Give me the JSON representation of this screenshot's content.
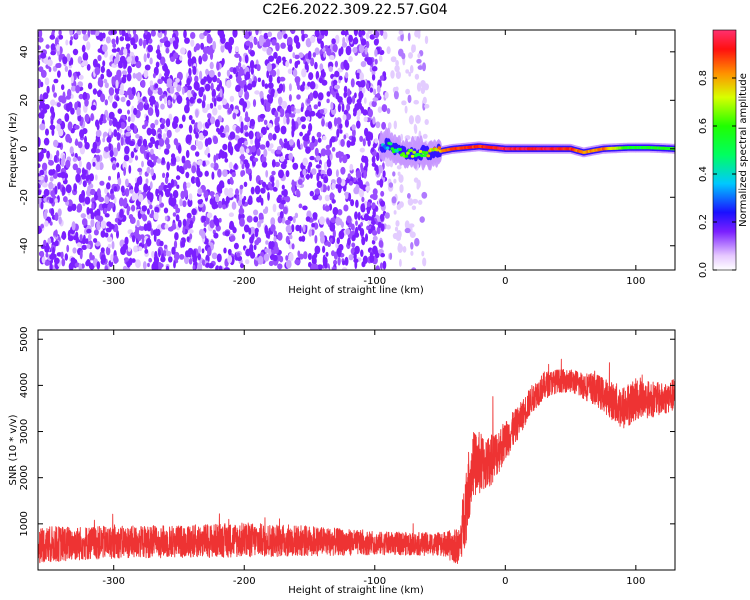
{
  "title": "C2E6.2022.309.22.57.G04",
  "chart_data": [
    {
      "type": "heatmap",
      "xlabel": "Height of straight line (km)",
      "ylabel": "Frequency (Hz)",
      "xlim": [
        -358,
        130
      ],
      "ylim": [
        -50,
        49
      ],
      "xticks": [
        "-300",
        "-200",
        "-100",
        "0",
        "100"
      ],
      "xtick_values": [
        -300,
        -200,
        -100,
        0,
        100
      ],
      "yticks": [
        "-40",
        "-20",
        "0",
        "20",
        "40"
      ],
      "ytick_values": [
        -40,
        -20,
        0,
        20,
        40
      ],
      "colorbar": {
        "label": "Normalized spectral amplitude",
        "range": [
          0,
          1
        ],
        "ticks": [
          "0.0",
          "0.2",
          "0.4",
          "0.6",
          "0.8"
        ],
        "tick_values": [
          0.0,
          0.2,
          0.4,
          0.6,
          0.8
        ]
      },
      "regions": [
        {
          "kind": "noise",
          "x_range": [
            -358,
            -92
          ],
          "y_range": [
            -50,
            49
          ],
          "amplitude": 0.05
        },
        {
          "kind": "sparse-noise",
          "x_range": [
            -92,
            -60
          ],
          "y_range": [
            -50,
            49
          ],
          "amplitude": 0.02
        }
      ],
      "signal_track": [
        {
          "x": -95,
          "y": 0.5,
          "amplitude": 0.25
        },
        {
          "x": -90,
          "y": 1.5,
          "amplitude": 0.45
        },
        {
          "x": -80,
          "y": -1.5,
          "amplitude": 0.55
        },
        {
          "x": -70,
          "y": -2,
          "amplitude": 0.6
        },
        {
          "x": -55,
          "y": -1.5,
          "amplitude": 0.7
        },
        {
          "x": -40,
          "y": 0,
          "amplitude": 0.9
        },
        {
          "x": -20,
          "y": 1,
          "amplitude": 0.9
        },
        {
          "x": 0,
          "y": 0,
          "amplitude": 0.95
        },
        {
          "x": 30,
          "y": 0,
          "amplitude": 0.95
        },
        {
          "x": 50,
          "y": 0,
          "amplitude": 0.9
        },
        {
          "x": 60,
          "y": -1.5,
          "amplitude": 0.8
        },
        {
          "x": 75,
          "y": 0,
          "amplitude": 0.85
        },
        {
          "x": 95,
          "y": 0.5,
          "amplitude": 0.55
        },
        {
          "x": 110,
          "y": 0.5,
          "amplitude": 0.55
        },
        {
          "x": 130,
          "y": 0,
          "amplitude": 0.6
        }
      ]
    },
    {
      "type": "line",
      "xlabel": "Height of straight line (km)",
      "ylabel": "SNR (10 * v/v)",
      "xlim": [
        -358,
        130
      ],
      "ylim": [
        0,
        5200
      ],
      "xticks": [
        "-300",
        "-200",
        "-100",
        "0",
        "100"
      ],
      "xtick_values": [
        -300,
        -200,
        -100,
        0,
        100
      ],
      "yticks": [
        "1000",
        "2000",
        "3000",
        "4000",
        "5000"
      ],
      "ytick_values": [
        1000,
        2000,
        3000,
        4000,
        5000
      ],
      "line_color": "#ee3333",
      "series": [
        {
          "x": [
            -358,
            -300,
            -250,
            -200,
            -150,
            -100,
            -50,
            -35,
            -30,
            -25,
            -20,
            -15,
            -10,
            0,
            10,
            20,
            30,
            40,
            50,
            60,
            70,
            80,
            90,
            100,
            110,
            120,
            130
          ],
          "values": [
            550,
            600,
            620,
            650,
            630,
            580,
            560,
            500,
            1500,
            2300,
            2300,
            2300,
            2400,
            2800,
            3200,
            3700,
            4000,
            4100,
            4100,
            4000,
            3900,
            3700,
            3500,
            3700,
            3700,
            3700,
            3800
          ],
          "noise": [
            400,
            350,
            350,
            380,
            330,
            250,
            250,
            400,
            900,
            700,
            700,
            600,
            550,
            450,
            350,
            300,
            300,
            250,
            250,
            300,
            350,
            400,
            500,
            450,
            400,
            350,
            350
          ]
        }
      ]
    }
  ]
}
